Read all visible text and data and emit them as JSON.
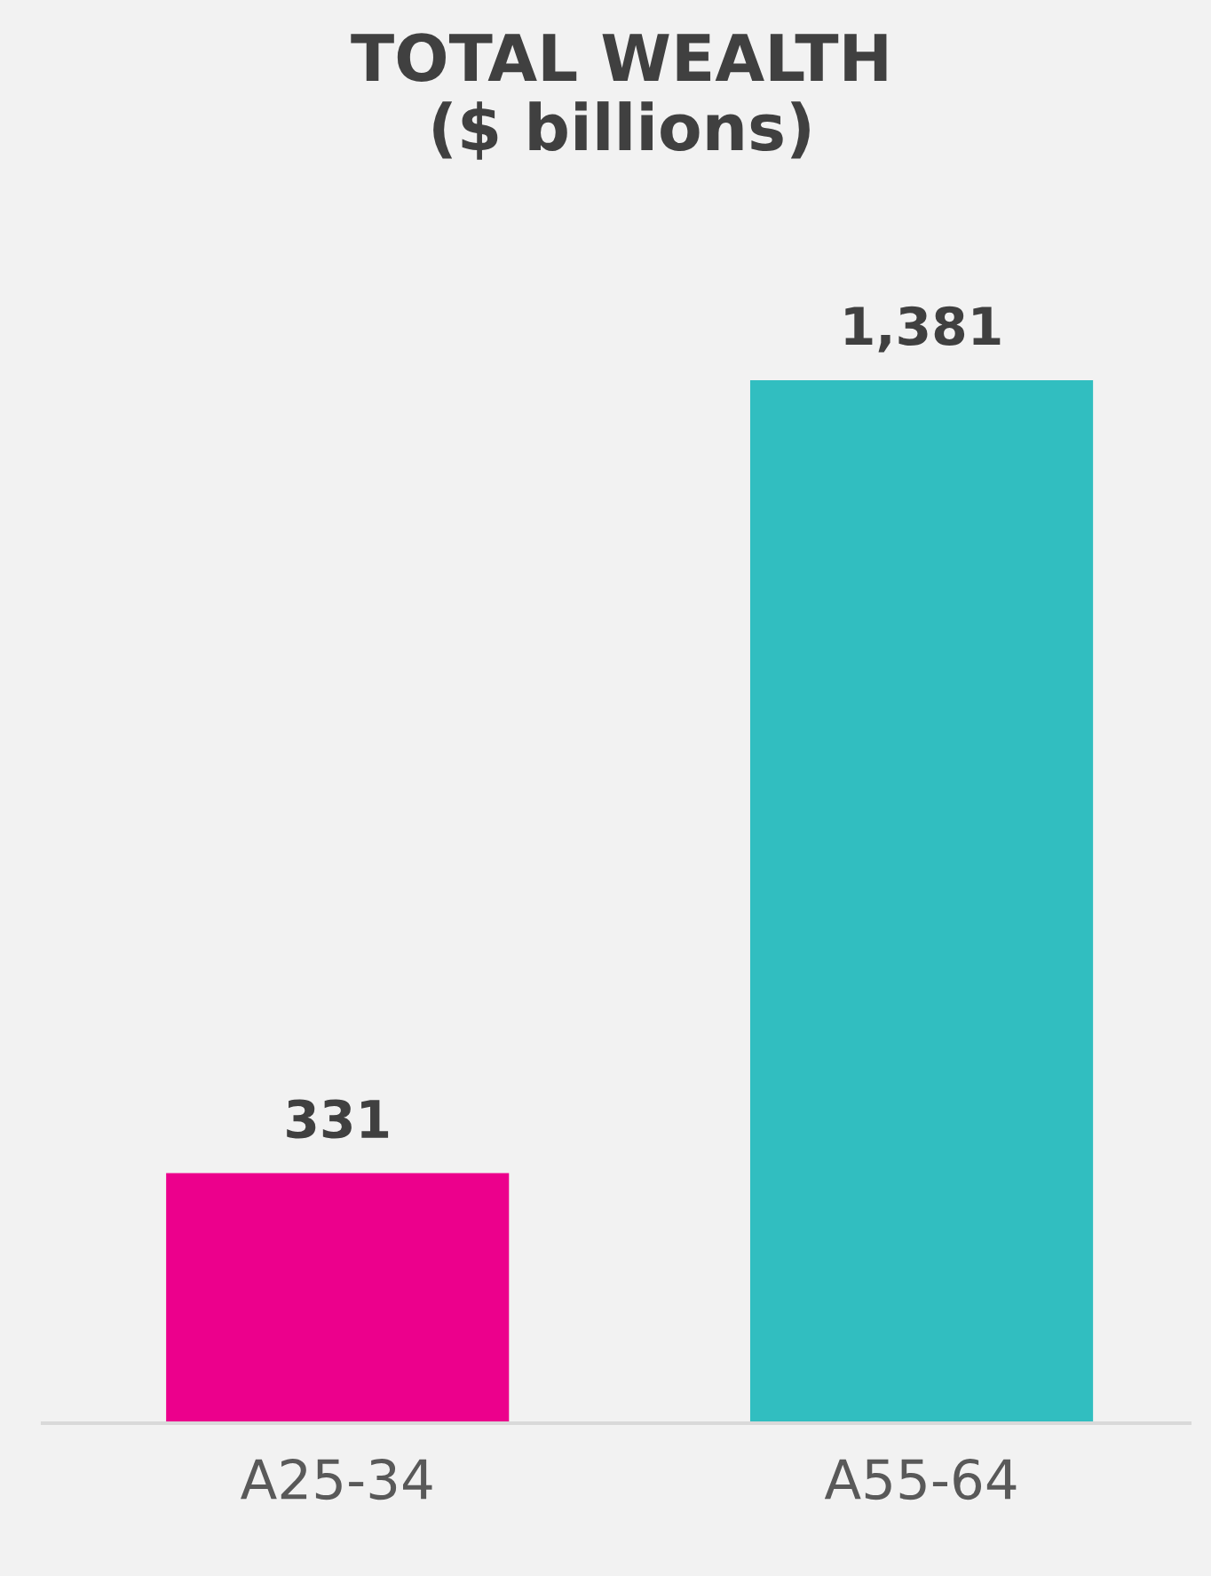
{
  "chart_data": {
    "type": "bar",
    "title": "TOTAL WEALTH\n($ billions)",
    "categories": [
      "A25-34",
      "A55-64"
    ],
    "values": [
      331,
      1381
    ],
    "value_labels": [
      "331",
      "1,381"
    ],
    "colors": [
      "#ec008c",
      "#31bec0"
    ]
  }
}
